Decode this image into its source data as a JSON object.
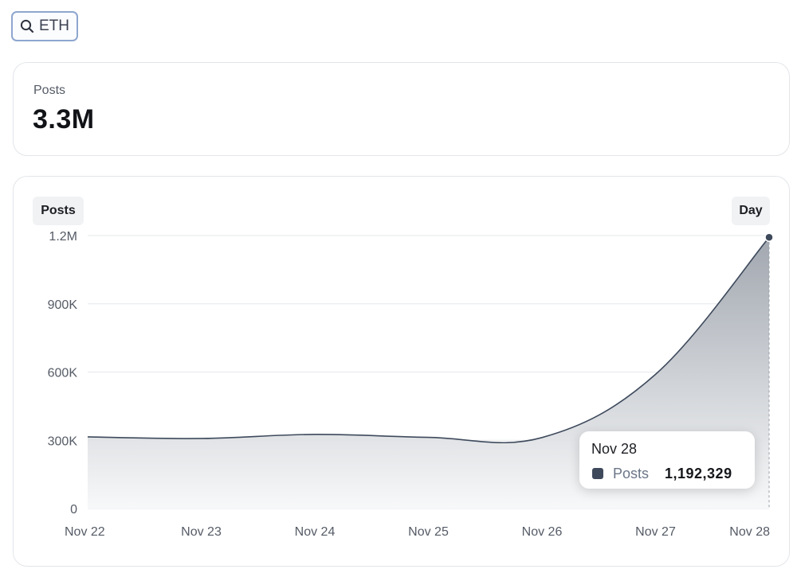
{
  "search": {
    "query": "ETH",
    "icon": "search-icon"
  },
  "metric": {
    "label": "Posts",
    "value": "3.3M"
  },
  "chart": {
    "series_label": "Posts",
    "period_label": "Day",
    "tooltip": {
      "date": "Nov 28",
      "series": "Posts",
      "value": "1,192,329"
    }
  },
  "colors": {
    "line": "#3e4a5c",
    "fill_top": "#9da3ac",
    "fill_bottom": "#f7f8f9",
    "grid": "#e6e7ea",
    "accent_border": "#8ea6cf"
  },
  "chart_data": {
    "type": "area",
    "title": "",
    "xlabel": "",
    "ylabel": "",
    "x": [
      "Nov 22",
      "Nov 23",
      "Nov 24",
      "Nov 25",
      "Nov 26",
      "Nov 27",
      "Nov 28"
    ],
    "series": [
      {
        "name": "Posts",
        "values": [
          315000,
          308000,
          326000,
          313000,
          312000,
          590000,
          1192329
        ]
      }
    ],
    "ylim": [
      0,
      1200000
    ],
    "y_ticks": [
      0,
      300000,
      600000,
      900000,
      1200000
    ],
    "y_tick_labels": [
      "0",
      "300K",
      "600K",
      "900K",
      "1.2M"
    ],
    "grid": true,
    "legend": "none"
  }
}
